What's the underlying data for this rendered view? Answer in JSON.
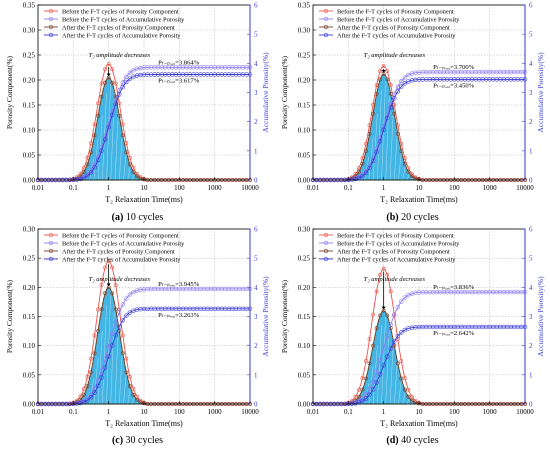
{
  "chart_data": [
    {
      "type": "line",
      "panel": "a",
      "caption_letter": "(a)",
      "caption_text": "10 cycles",
      "annotation": "T₂ amplitude decreases",
      "porosity_label_before": "Pₜ₋ₚₒᵣₑ=3.864%",
      "porosity_label_after": "Pₜ₋ₚₒᵣₑ=3.617%",
      "xlabel": "T₂ Relaxation Time(ms)",
      "ylabel_left": "Porosity Component(%)",
      "ylabel_right": "Accumulative Porosity(%)",
      "x_scale": "log",
      "xlim": [
        0.01,
        10000
      ],
      "ylim_left": [
        0,
        0.35
      ],
      "ylim_right": [
        0,
        6
      ],
      "x_ticks": [
        "0.01",
        "0.1",
        "1",
        "10",
        "100",
        "1000",
        "10000"
      ],
      "y_ticks_left": [
        "0.00",
        "0.05",
        "0.10",
        "0.15",
        "0.20",
        "0.25",
        "0.30",
        "0.35"
      ],
      "y_ticks_right": [
        "0",
        "1",
        "2",
        "3",
        "4",
        "5",
        "6"
      ],
      "legend": [
        "Before the F-T cycles of Porosity Component",
        "Before the F-T cycles of Accumulative Porosity",
        "After the F-T cycles of Porosity Component",
        "After the F-T cycles of Accumulative Porosity"
      ],
      "peak_before": 0.232,
      "peak_after": 0.205,
      "accum_before": 3.864,
      "accum_after": 3.617
    },
    {
      "type": "line",
      "panel": "b",
      "caption_letter": "(b)",
      "caption_text": "20 cycles",
      "annotation": "T₂ amplitude decreases",
      "porosity_label_before": "Pₜ₋ₚₒᵣₑ=3.700%",
      "porosity_label_after": "Pₜ₋ₚₒᵣₑ=3.450%",
      "xlabel": "T₂ Relaxation Time(ms)",
      "ylabel_left": "Porosity Component(%)",
      "ylabel_right": "Accumulative Porosity(%)",
      "x_scale": "log",
      "xlim": [
        0.01,
        10000
      ],
      "ylim_left": [
        0,
        0.35
      ],
      "ylim_right": [
        0,
        6
      ],
      "x_ticks": [
        "0.01",
        "0.1",
        "1",
        "10",
        "100",
        "1000",
        "10000"
      ],
      "y_ticks_left": [
        "0.00",
        "0.05",
        "0.10",
        "0.15",
        "0.20",
        "0.25",
        "0.30",
        "0.35"
      ],
      "y_ticks_right": [
        "0",
        "1",
        "2",
        "3",
        "4",
        "5",
        "6"
      ],
      "legend": [
        "Before the F-T cycles of Porosity Component",
        "Before the F-T cycles of Accumulative Porosity",
        "After the F-T cycles of Porosity Component",
        "After the F-T cycles of Accumulative Porosity"
      ],
      "peak_before": 0.228,
      "peak_after": 0.212,
      "accum_before": 3.7,
      "accum_after": 3.45
    },
    {
      "type": "line",
      "panel": "c",
      "caption_letter": "(c)",
      "caption_text": "30 cycles",
      "annotation": "T₂ amplitude decreases",
      "porosity_label_before": "Pₜ₋ₚₒᵣₑ=3.945%",
      "porosity_label_after": "Pₜ₋ₚₒᵣₑ=3.263%",
      "xlabel": "T₂ Relaxation Time(ms)",
      "ylabel_left": "Porosity Component(%)",
      "ylabel_right": "Accumulative Porosity(%)",
      "x_scale": "log",
      "xlim": [
        0.01,
        10000
      ],
      "ylim_left": [
        0,
        0.3
      ],
      "ylim_right": [
        0,
        6
      ],
      "x_ticks": [
        "0.01",
        "0.1",
        "1",
        "10",
        "100",
        "1000",
        "10000"
      ],
      "y_ticks_left": [
        "0.00",
        "0.05",
        "0.10",
        "0.15",
        "0.20",
        "0.25",
        "0.30"
      ],
      "y_ticks_right": [
        "0",
        "1",
        "2",
        "3",
        "4",
        "5",
        "6"
      ],
      "legend": [
        "Before the F-T cycles of Porosity Component",
        "Before the F-T cycles of Accumulative Porosity",
        "After the F-T cycles of Porosity Component",
        "After the F-T cycles of Accumulative Porosity"
      ],
      "peak_before": 0.245,
      "peak_after": 0.2,
      "accum_before": 3.945,
      "accum_after": 3.263
    },
    {
      "type": "line",
      "panel": "d",
      "caption_letter": "(d)",
      "caption_text": "40 cycles",
      "annotation": "T₂ amplitude decreases",
      "porosity_label_before": "Pₜ₋ₚₒᵣₑ=3.836%",
      "porosity_label_after": "Pₜ₋ₚₒᵣₑ=2.642%",
      "xlabel": "T₂ Relaxation Time(ms)",
      "ylabel_left": "Porosity Component(%)",
      "ylabel_right": "Accumulative Porosity(%)",
      "x_scale": "log",
      "xlim": [
        0.01,
        10000
      ],
      "ylim_left": [
        0,
        0.3
      ],
      "ylim_right": [
        0,
        6
      ],
      "x_ticks": [
        "0.01",
        "0.1",
        "1",
        "10",
        "100",
        "1000",
        "10000"
      ],
      "y_ticks_left": [
        "0.00",
        "0.05",
        "0.10",
        "0.15",
        "0.20",
        "0.25",
        "0.30"
      ],
      "y_ticks_right": [
        "0",
        "1",
        "2",
        "3",
        "4",
        "5",
        "6"
      ],
      "legend": [
        "Before the F-T cycles of Porosity Component",
        "Before the F-T cycles of Accumulative Porosity",
        "After the F-T cycles of Porosity Component",
        "After the F-T cycles of Accumulative Porosity"
      ],
      "peak_before": 0.232,
      "peak_after": 0.16,
      "accum_before": 3.836,
      "accum_after": 2.642
    }
  ],
  "colors": {
    "before_component": "#e8534a",
    "before_accum": "#8d7cf0",
    "after_component": "#7a3c2a",
    "after_accum": "#3a3ad6",
    "fill": "#23a9e1",
    "fill_edge": "#2ca02c",
    "right_axis": "#3a3ad6",
    "grid": "#b0b0b0"
  }
}
